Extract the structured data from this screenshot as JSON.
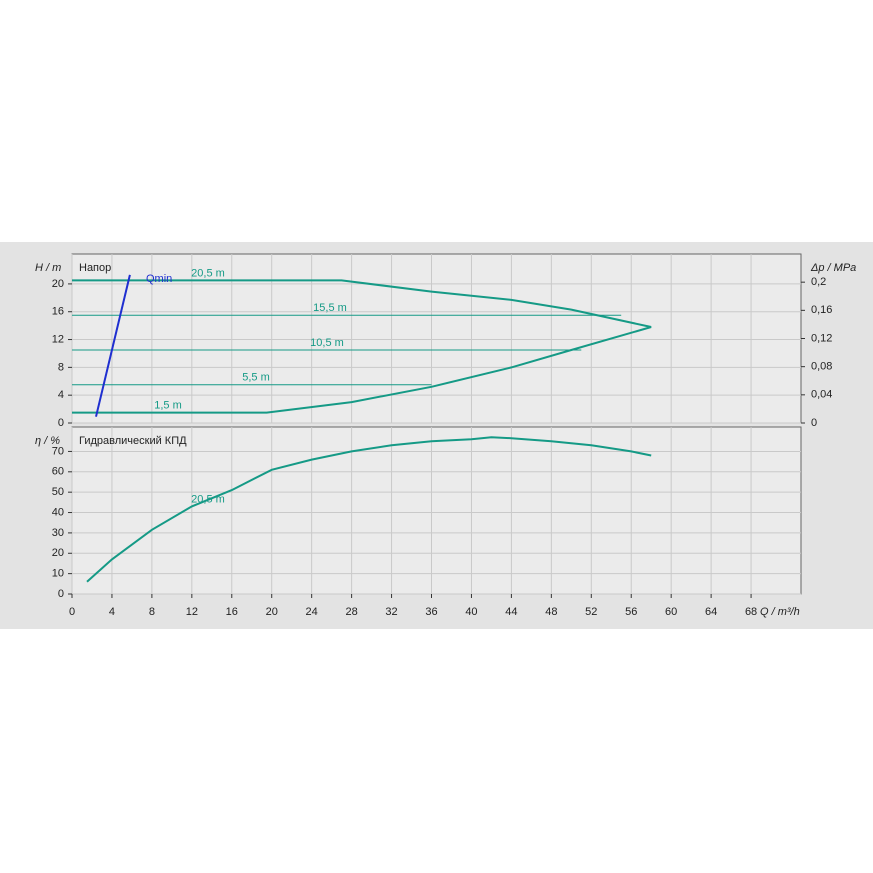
{
  "chart_data": [
    {
      "type": "line",
      "title": "Напор",
      "ylabel": "H / m",
      "y2label": "Δp / MPa",
      "xlim": [
        0,
        73
      ],
      "xticks": [
        0,
        4,
        8,
        12,
        16,
        20,
        24,
        28,
        32,
        36,
        40,
        44,
        48,
        52,
        56,
        60,
        64,
        68
      ],
      "ylim": [
        0,
        24.3
      ],
      "yticks": [
        0,
        4,
        8,
        12,
        16,
        20
      ],
      "y2lim": [
        0,
        0.24
      ],
      "y2ticks": [
        0,
        {
          "value": 0.04,
          "label": "0,04"
        },
        {
          "value": 0.08,
          "label": "0,08"
        },
        {
          "value": 0.12,
          "label": "0,12"
        },
        {
          "value": 0.16,
          "label": "0,16"
        },
        {
          "value": 0.2,
          "label": "0,2"
        }
      ],
      "grid": true,
      "series": [
        {
          "name": "20,5 m",
          "color": "#159a86",
          "x": [
            0,
            27,
            36,
            44,
            50,
            58
          ],
          "values": [
            20.5,
            20.5,
            18.9,
            17.7,
            16.3,
            13.8
          ]
        },
        {
          "name": "15,5 m",
          "color": "#159a86",
          "x": [
            0,
            55
          ],
          "values": [
            15.5,
            15.5
          ]
        },
        {
          "name": "10,5 m",
          "color": "#159a86",
          "x": [
            0,
            51
          ],
          "values": [
            10.5,
            10.5
          ]
        },
        {
          "name": "5,5 m",
          "color": "#159a86",
          "x": [
            0,
            36
          ],
          "values": [
            5.5,
            5.5
          ]
        },
        {
          "name": "1,5 m",
          "color": "#159a86",
          "x": [
            0,
            19.5,
            28,
            36,
            44,
            50,
            58
          ],
          "values": [
            1.5,
            1.5,
            3,
            5.2,
            8,
            10.5,
            13.8
          ]
        },
        {
          "name": "Qmin",
          "color": "#1f2fd0",
          "x": [
            2.4,
            5.8
          ],
          "values": [
            0.9,
            21.3
          ]
        }
      ]
    },
    {
      "type": "line",
      "title": "Гидравлический КПД",
      "ylabel": "η / %",
      "xlabel": "Q / m³/h",
      "xlim": [
        0,
        73
      ],
      "xticks": [
        0,
        4,
        8,
        12,
        16,
        20,
        24,
        28,
        32,
        36,
        40,
        44,
        48,
        52,
        56,
        60,
        64,
        68
      ],
      "ylim": [
        0,
        82
      ],
      "yticks": [
        0,
        10,
        20,
        30,
        40,
        50,
        60,
        70
      ],
      "grid": true,
      "series": [
        {
          "name": "20,5 m",
          "color": "#159a86",
          "x": [
            1.5,
            4,
            8,
            12,
            16,
            20,
            24,
            28,
            32,
            36,
            40,
            42,
            44,
            48,
            52,
            56,
            58
          ],
          "values": [
            6,
            17,
            31.5,
            43,
            51,
            61,
            66,
            70,
            73,
            75,
            76,
            77,
            76.5,
            75,
            73,
            70,
            68
          ]
        }
      ]
    }
  ]
}
